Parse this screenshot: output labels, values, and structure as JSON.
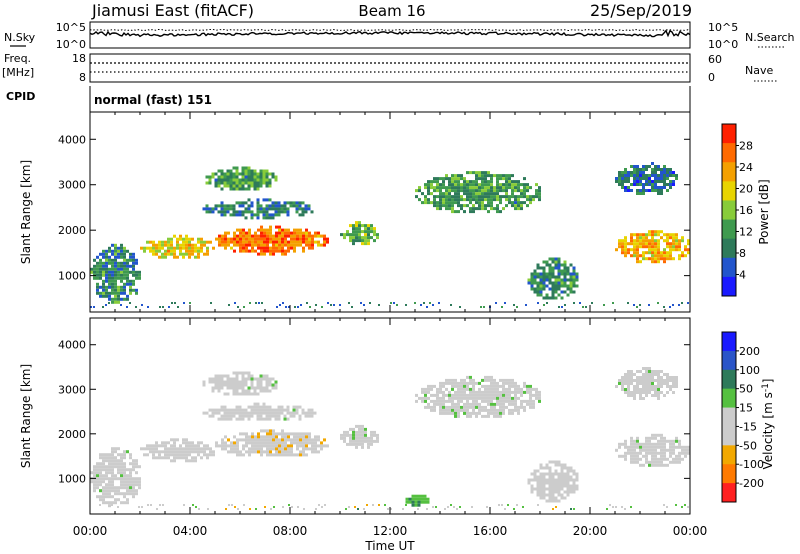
{
  "header": {
    "station": "Jiamusi East (fitACF)",
    "beam": "Beam 16",
    "date": "25/Sep/2019"
  },
  "summary": {
    "nsky_label": "N.Sky",
    "nsearch_label": "N.Search",
    "counts_ticks": [
      "10^5",
      "10^0"
    ],
    "freq_label_line1": "Freq.",
    "freq_label_line2": "[MHz]",
    "freq_ticks": [
      "18",
      "8"
    ],
    "nave_label": "Nave",
    "nave_ticks": [
      "60",
      "0"
    ],
    "cpid_label": "CPID",
    "cpid_text": "normal (fast) 151"
  },
  "colors": {
    "power_scale": [
      "#1a1aff",
      "#2255cc",
      "#2e7a5a",
      "#3f9a4f",
      "#88cc3a",
      "#e8d400",
      "#f4a000",
      "#ff6a00",
      "#ff2000"
    ],
    "velocity_scale": [
      "#1a1aff",
      "#2a55c8",
      "#2e7a5a",
      "#55c040",
      "#cccccc",
      "#cccccc",
      "#f2a800",
      "#ff7a00",
      "#ff2020"
    ],
    "ground_scatter": "#b0b0b0"
  },
  "chart_data": [
    {
      "type": "heatmap",
      "name": "power",
      "xlabel": "Time UT",
      "ylabel": "Slant Range [km]",
      "x_ticks": [
        "00:00",
        "04:00",
        "08:00",
        "12:00",
        "16:00",
        "20:00",
        "00:00"
      ],
      "xlim": [
        0,
        24
      ],
      "y_ticks": [
        1000,
        2000,
        3000,
        4000
      ],
      "ylim": [
        200,
        4600
      ],
      "colorbar": {
        "label": "Power [dB]",
        "ticks": [
          4,
          8,
          12,
          16,
          20,
          24,
          28
        ],
        "range": [
          0,
          32
        ]
      },
      "echo_regions": [
        {
          "t_start": 0.0,
          "t_end": 2.0,
          "r_low": 400,
          "r_high": 1700,
          "value": 10
        },
        {
          "t_start": 2.0,
          "t_end": 5.0,
          "r_low": 1400,
          "r_high": 1900,
          "value": 20
        },
        {
          "t_start": 5.0,
          "t_end": 9.5,
          "r_low": 1500,
          "r_high": 2100,
          "value": 26
        },
        {
          "t_start": 4.5,
          "t_end": 7.5,
          "r_low": 2900,
          "r_high": 3400,
          "value": 12
        },
        {
          "t_start": 4.5,
          "t_end": 9.0,
          "r_low": 2300,
          "r_high": 2700,
          "value": 9
        },
        {
          "t_start": 10.0,
          "t_end": 11.5,
          "r_low": 1700,
          "r_high": 2200,
          "value": 14
        },
        {
          "t_start": 13.0,
          "t_end": 18.0,
          "r_low": 2400,
          "r_high": 3300,
          "value": 12
        },
        {
          "t_start": 17.5,
          "t_end": 19.5,
          "r_low": 500,
          "r_high": 1400,
          "value": 10
        },
        {
          "t_start": 21.0,
          "t_end": 24.0,
          "r_low": 1300,
          "r_high": 2000,
          "value": 22
        },
        {
          "t_start": 21.0,
          "t_end": 23.5,
          "r_low": 2800,
          "r_high": 3500,
          "value": 8
        }
      ]
    },
    {
      "type": "heatmap",
      "name": "velocity",
      "xlabel": "Time UT",
      "ylabel": "Slant Range [km]",
      "x_ticks": [
        "00:00",
        "04:00",
        "08:00",
        "12:00",
        "16:00",
        "20:00",
        "00:00"
      ],
      "xlim": [
        0,
        24
      ],
      "y_ticks": [
        1000,
        2000,
        3000,
        4000
      ],
      "ylim": [
        200,
        4600
      ],
      "colorbar": {
        "label": "Velocity [m s^-1]",
        "ticks": [
          200,
          100,
          50,
          15,
          -15,
          -50,
          -100,
          -200
        ],
        "range": [
          -250,
          250
        ]
      },
      "echo_regions": [
        {
          "t_start": 0.0,
          "t_end": 2.0,
          "r_low": 400,
          "r_high": 1700,
          "value": 0
        },
        {
          "t_start": 2.0,
          "t_end": 5.0,
          "r_low": 1400,
          "r_high": 1900,
          "value": -40
        },
        {
          "t_start": 5.0,
          "t_end": 9.5,
          "r_low": 1500,
          "r_high": 2100,
          "value": -60
        },
        {
          "t_start": 4.5,
          "t_end": 7.5,
          "r_low": 2900,
          "r_high": 3400,
          "value": 0
        },
        {
          "t_start": 4.5,
          "t_end": 9.0,
          "r_low": 2300,
          "r_high": 2700,
          "value": 0
        },
        {
          "t_start": 10.0,
          "t_end": 11.5,
          "r_low": 1700,
          "r_high": 2200,
          "value": 0
        },
        {
          "t_start": 12.5,
          "t_end": 13.5,
          "r_low": 400,
          "r_high": 700,
          "value": 60
        },
        {
          "t_start": 13.0,
          "t_end": 18.0,
          "r_low": 2400,
          "r_high": 3300,
          "value": 0
        },
        {
          "t_start": 17.5,
          "t_end": 19.5,
          "r_low": 500,
          "r_high": 1400,
          "value": -30
        },
        {
          "t_start": 21.0,
          "t_end": 24.0,
          "r_low": 1300,
          "r_high": 2000,
          "value": 0
        },
        {
          "t_start": 21.0,
          "t_end": 23.5,
          "r_low": 2800,
          "r_high": 3500,
          "value": 0
        }
      ]
    }
  ]
}
